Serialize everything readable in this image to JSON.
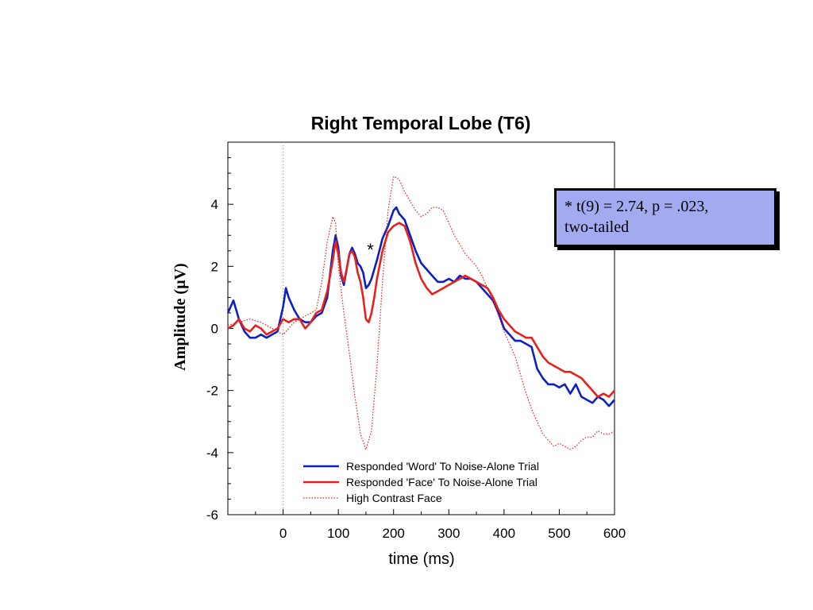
{
  "chart_data": {
    "type": "line",
    "title": "Right Temporal Lobe (T6)",
    "xlabel": "time (ms)",
    "ylabel": "Amplitude (µV)",
    "xlim": [
      -100,
      600
    ],
    "ylim": [
      -6,
      6
    ],
    "x_ticks": [
      0,
      100,
      200,
      300,
      400,
      500,
      600
    ],
    "y_ticks": [
      -6,
      -4,
      -2,
      0,
      2,
      4
    ],
    "grid": false,
    "onset_marker_x": 0,
    "legend_position": "bottom-center",
    "series": [
      {
        "name": "Responded 'Word' To Noise-Alone Trial",
        "color": "#0a1fc4",
        "style": "solid",
        "x": [
          -100,
          -90,
          -80,
          -70,
          -60,
          -50,
          -40,
          -30,
          -20,
          -10,
          0,
          5,
          10,
          20,
          30,
          40,
          50,
          60,
          70,
          80,
          90,
          95,
          100,
          105,
          110,
          115,
          120,
          125,
          130,
          135,
          140,
          145,
          150,
          155,
          160,
          170,
          180,
          190,
          200,
          205,
          210,
          215,
          220,
          230,
          240,
          250,
          260,
          270,
          280,
          290,
          300,
          310,
          320,
          330,
          340,
          350,
          360,
          370,
          380,
          390,
          400,
          410,
          420,
          430,
          440,
          450,
          460,
          470,
          480,
          490,
          500,
          510,
          520,
          530,
          540,
          550,
          560,
          570,
          580,
          590,
          600
        ],
        "values": [
          0.5,
          0.9,
          0.3,
          -0.1,
          -0.3,
          -0.3,
          -0.2,
          -0.3,
          -0.2,
          -0.1,
          0.7,
          1.3,
          1.0,
          0.6,
          0.3,
          0.2,
          0.2,
          0.4,
          0.5,
          1.0,
          2.5,
          3.0,
          2.6,
          1.7,
          1.4,
          1.9,
          2.4,
          2.6,
          2.4,
          2.1,
          2.0,
          1.8,
          1.3,
          1.4,
          1.6,
          2.2,
          2.9,
          3.3,
          3.8,
          3.9,
          3.7,
          3.6,
          3.5,
          3.0,
          2.5,
          2.1,
          1.9,
          1.7,
          1.5,
          1.5,
          1.6,
          1.5,
          1.7,
          1.6,
          1.6,
          1.5,
          1.3,
          1.1,
          0.9,
          0.5,
          0.0,
          -0.2,
          -0.4,
          -0.4,
          -0.5,
          -0.6,
          -1.3,
          -1.6,
          -1.8,
          -1.8,
          -1.9,
          -1.8,
          -2.1,
          -1.8,
          -2.2,
          -2.3,
          -2.4,
          -2.2,
          -2.3,
          -2.5,
          -2.3
        ]
      },
      {
        "name": "Responded 'Face' To Noise-Alone Trial",
        "color": "#e8201c",
        "style": "solid",
        "x": [
          -100,
          -90,
          -80,
          -70,
          -60,
          -50,
          -40,
          -30,
          -20,
          -10,
          0,
          10,
          20,
          30,
          40,
          50,
          60,
          70,
          80,
          90,
          95,
          100,
          105,
          110,
          115,
          120,
          125,
          130,
          135,
          140,
          145,
          150,
          155,
          160,
          165,
          170,
          180,
          190,
          200,
          210,
          220,
          230,
          240,
          250,
          260,
          270,
          280,
          290,
          300,
          310,
          320,
          330,
          340,
          350,
          360,
          370,
          380,
          390,
          400,
          410,
          420,
          430,
          440,
          450,
          460,
          470,
          480,
          490,
          500,
          510,
          520,
          530,
          540,
          550,
          560,
          570,
          580,
          590,
          600
        ],
        "values": [
          0.0,
          0.1,
          0.3,
          0.0,
          -0.1,
          0.1,
          0.0,
          -0.2,
          -0.1,
          0.0,
          0.3,
          0.2,
          0.3,
          0.3,
          0.0,
          0.2,
          0.5,
          0.6,
          1.2,
          2.2,
          2.8,
          2.4,
          1.8,
          1.5,
          1.9,
          2.4,
          2.5,
          2.3,
          1.8,
          1.5,
          1.0,
          0.3,
          0.2,
          0.5,
          1.0,
          1.6,
          2.5,
          3.1,
          3.3,
          3.4,
          3.3,
          2.8,
          2.1,
          1.6,
          1.3,
          1.1,
          1.2,
          1.3,
          1.4,
          1.5,
          1.6,
          1.7,
          1.6,
          1.5,
          1.4,
          1.3,
          1.0,
          0.6,
          0.3,
          0.1,
          -0.1,
          -0.2,
          -0.3,
          -0.3,
          -0.6,
          -0.9,
          -1.1,
          -1.2,
          -1.3,
          -1.4,
          -1.4,
          -1.5,
          -1.6,
          -1.8,
          -2.0,
          -2.2,
          -2.1,
          -2.2,
          -2.0
        ]
      },
      {
        "name": "High Contrast Face",
        "color": "#e8201c",
        "style": "dotted",
        "x": [
          -100,
          -80,
          -60,
          -40,
          -20,
          0,
          20,
          40,
          60,
          70,
          80,
          90,
          95,
          100,
          110,
          120,
          130,
          140,
          150,
          160,
          170,
          180,
          190,
          200,
          210,
          220,
          230,
          240,
          250,
          260,
          270,
          280,
          290,
          300,
          310,
          320,
          330,
          340,
          350,
          360,
          370,
          380,
          390,
          400,
          410,
          420,
          430,
          440,
          450,
          460,
          470,
          480,
          490,
          500,
          510,
          520,
          530,
          540,
          550,
          560,
          570,
          580,
          590,
          600
        ],
        "values": [
          0.1,
          0.2,
          0.3,
          0.2,
          0.0,
          -0.2,
          0.2,
          0.4,
          0.6,
          1.5,
          2.8,
          3.6,
          3.4,
          2.0,
          0.5,
          -0.8,
          -2.2,
          -3.4,
          -3.9,
          -3.3,
          -1.2,
          1.5,
          3.8,
          4.9,
          4.8,
          4.4,
          4.1,
          3.8,
          3.6,
          3.7,
          3.9,
          3.9,
          3.8,
          3.4,
          3.0,
          2.7,
          2.4,
          2.2,
          2.0,
          1.7,
          1.3,
          0.9,
          0.4,
          -0.1,
          -0.5,
          -0.9,
          -1.5,
          -2.1,
          -2.6,
          -3.0,
          -3.4,
          -3.6,
          -3.8,
          -3.7,
          -3.8,
          -3.9,
          -3.8,
          -3.6,
          -3.5,
          -3.5,
          -3.3,
          -3.4,
          -3.4,
          -3.3
        ]
      }
    ],
    "annotations": [
      {
        "text": "*",
        "x": 158,
        "y": 2.7
      }
    ]
  },
  "stats_box": {
    "line1": "* t(9) = 2.74, p = .023,",
    "line2": "two-tailed"
  }
}
